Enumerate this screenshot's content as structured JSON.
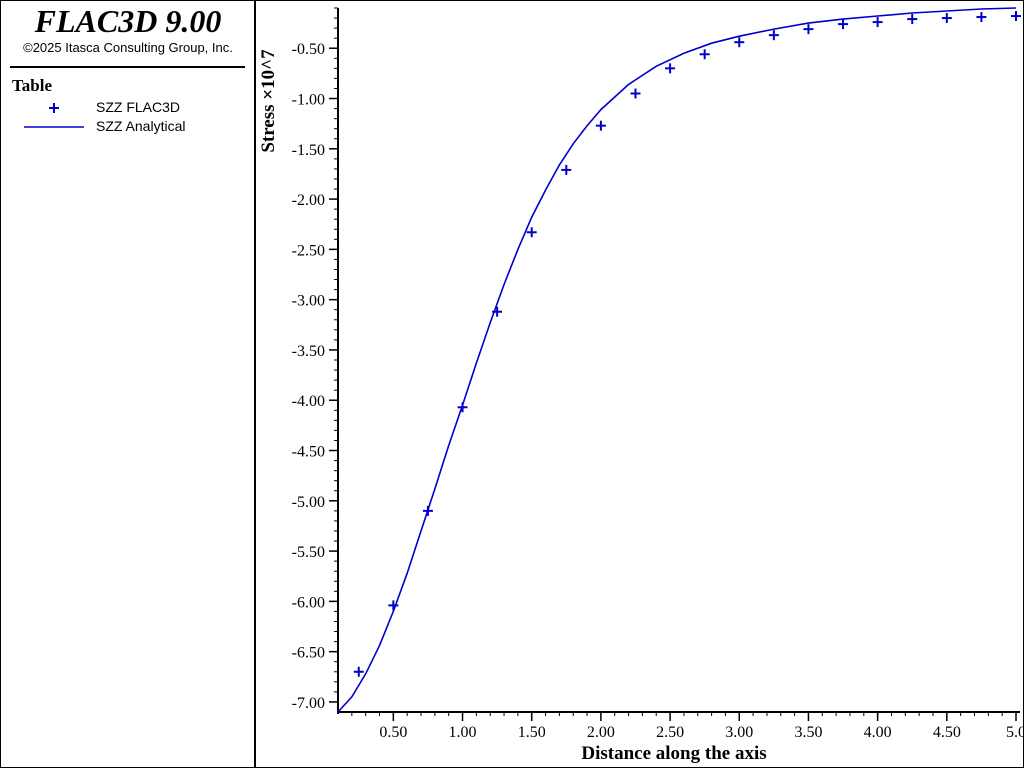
{
  "app": {
    "title": "FLAC3D 9.00",
    "copyright": "©2025 Itasca Consulting Group, Inc."
  },
  "legend": {
    "title": "Table",
    "items": [
      {
        "label": "SZZ FLAC3D",
        "symbol": "plus-icon",
        "color": "#0000cc"
      },
      {
        "label": "SZZ Analytical",
        "symbol": "line-icon",
        "color": "#0000cc"
      }
    ]
  },
  "chart_data": {
    "type": "line",
    "xlabel": "Distance along the axis",
    "ylabel": "Stress ×10^7",
    "xlim": [
      0.1,
      5.0
    ],
    "ylim": [
      -7.1,
      -0.1
    ],
    "x_ticks": [
      0.5,
      1.0,
      1.5,
      2.0,
      2.5,
      3.0,
      3.5,
      4.0,
      4.5,
      5.0
    ],
    "x_tick_labels": [
      "0.50",
      "1.00",
      "1.50",
      "2.00",
      "2.50",
      "3.00",
      "3.50",
      "4.00",
      "4.50",
      "5.0"
    ],
    "y_ticks": [
      -0.5,
      -1.0,
      -1.5,
      -2.0,
      -2.5,
      -3.0,
      -3.5,
      -4.0,
      -4.5,
      -5.0,
      -5.5,
      -6.0,
      -6.5,
      -7.0
    ],
    "y_tick_labels": [
      "-0.50",
      "-1.00",
      "-1.50",
      "-2.00",
      "-2.50",
      "-3.00",
      "-3.50",
      "-4.00",
      "-4.50",
      "-5.00",
      "-5.50",
      "-6.00",
      "-6.50",
      "-7.00"
    ],
    "grid": false,
    "series": [
      {
        "name": "SZZ FLAC3D",
        "style": "markers",
        "color": "#0000cc",
        "x": [
          0.25,
          0.5,
          0.75,
          1.0,
          1.25,
          1.5,
          1.75,
          2.0,
          2.25,
          2.5,
          2.75,
          3.0,
          3.25,
          3.5,
          3.75,
          4.0,
          4.25,
          4.5,
          4.75,
          5.0
        ],
        "y": [
          -6.7,
          -6.04,
          -5.1,
          -4.07,
          -3.12,
          -2.33,
          -1.71,
          -1.27,
          -0.95,
          -0.7,
          -0.56,
          -0.44,
          -0.37,
          -0.31,
          -0.26,
          -0.24,
          -0.21,
          -0.2,
          -0.19,
          -0.18
        ]
      },
      {
        "name": "SZZ Analytical",
        "style": "line",
        "color": "#0000cc",
        "x": [
          0.1,
          0.2,
          0.3,
          0.4,
          0.5,
          0.6,
          0.7,
          0.8,
          0.9,
          1.0,
          1.1,
          1.2,
          1.3,
          1.4,
          1.5,
          1.6,
          1.7,
          1.8,
          1.9,
          2.0,
          2.2,
          2.4,
          2.6,
          2.8,
          3.0,
          3.25,
          3.5,
          3.75,
          4.0,
          4.25,
          4.5,
          4.75,
          5.0
        ],
        "y": [
          -7.1,
          -6.95,
          -6.72,
          -6.44,
          -6.1,
          -5.72,
          -5.3,
          -4.88,
          -4.45,
          -4.05,
          -3.63,
          -3.23,
          -2.85,
          -2.5,
          -2.18,
          -1.91,
          -1.66,
          -1.45,
          -1.27,
          -1.11,
          -0.86,
          -0.68,
          -0.55,
          -0.45,
          -0.38,
          -0.31,
          -0.25,
          -0.21,
          -0.18,
          -0.15,
          -0.13,
          -0.11,
          -0.1
        ]
      }
    ]
  }
}
